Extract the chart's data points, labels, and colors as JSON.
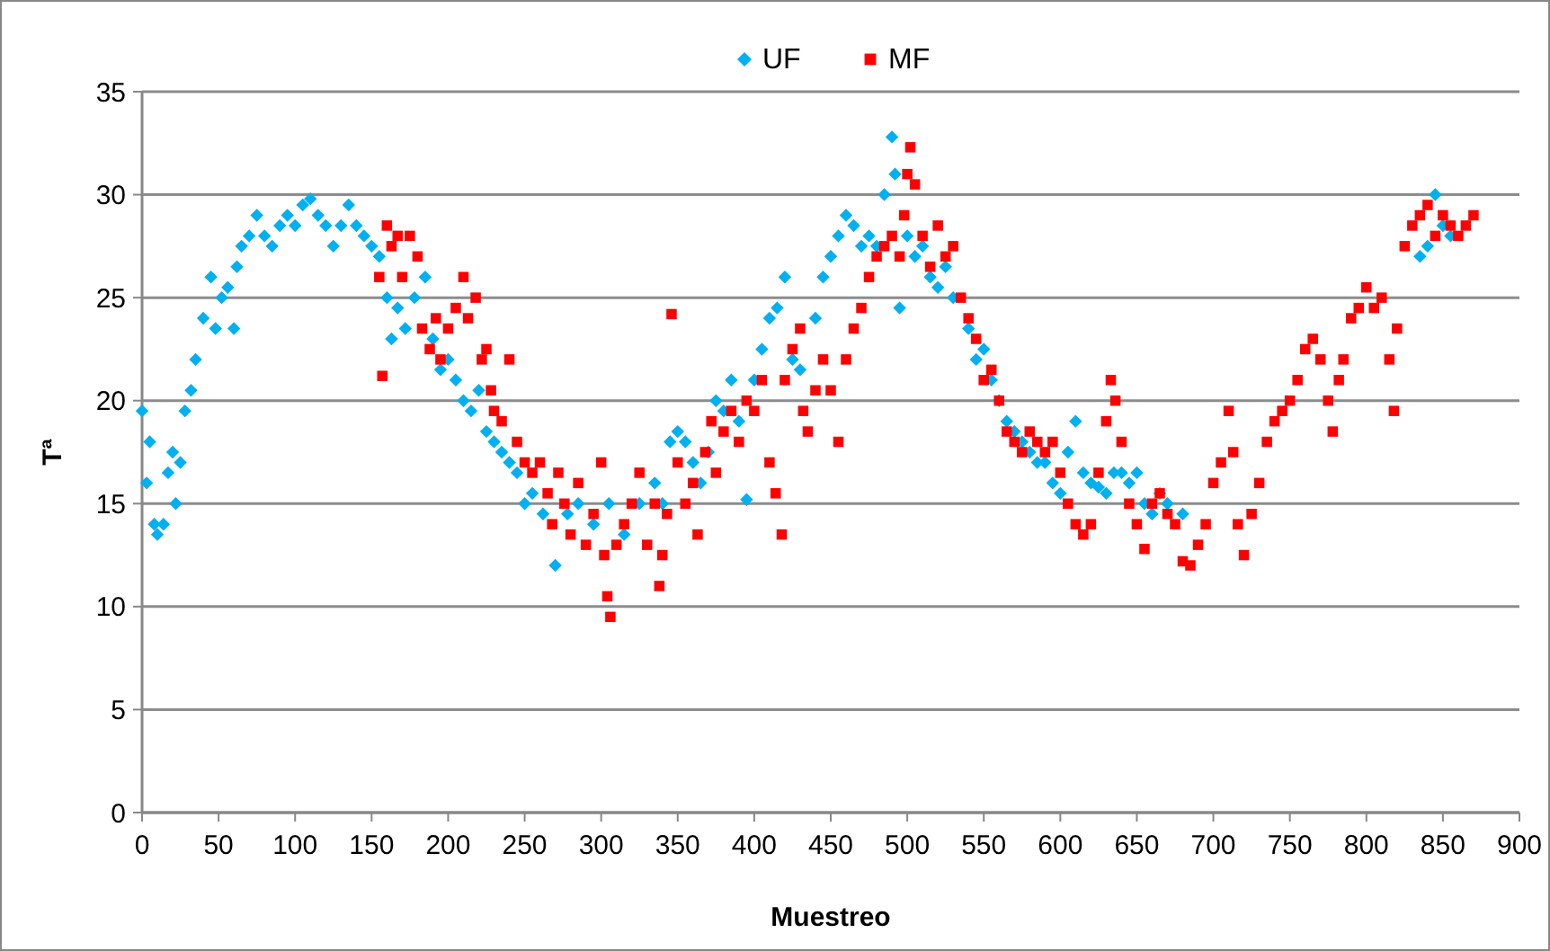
{
  "chart_data": {
    "type": "scatter",
    "xlabel": "Muestreo",
    "ylabel": "Tª",
    "xlim": [
      0,
      900
    ],
    "xticks": [
      0,
      50,
      100,
      150,
      200,
      250,
      300,
      350,
      400,
      450,
      500,
      550,
      600,
      650,
      700,
      750,
      800,
      850,
      900
    ],
    "ylim": [
      0,
      35
    ],
    "yticks": [
      0,
      5,
      10,
      15,
      20,
      25,
      30,
      35
    ],
    "grid": "y",
    "legend": "top",
    "series": [
      {
        "name": "UF",
        "color": "#00b0f0",
        "marker": "diamond",
        "x": [
          0,
          3,
          5,
          8,
          10,
          14,
          17,
          20,
          22,
          25,
          28,
          32,
          35,
          40,
          45,
          48,
          52,
          56,
          60,
          62,
          65,
          70,
          75,
          80,
          85,
          90,
          95,
          100,
          105,
          110,
          115,
          120,
          125,
          130,
          135,
          140,
          145,
          150,
          155,
          160,
          163,
          167,
          172,
          178,
          185,
          190,
          195,
          200,
          205,
          210,
          215,
          220,
          225,
          230,
          235,
          240,
          245,
          250,
          255,
          262,
          270,
          278,
          285,
          295,
          305,
          315,
          325,
          335,
          340,
          345,
          350,
          355,
          360,
          365,
          370,
          375,
          380,
          385,
          390,
          395,
          400,
          405,
          410,
          415,
          420,
          425,
          430,
          440,
          445,
          450,
          455,
          460,
          465,
          470,
          475,
          480,
          485,
          490,
          492,
          495,
          500,
          505,
          510,
          515,
          520,
          525,
          530,
          540,
          545,
          550,
          555,
          560,
          565,
          570,
          575,
          580,
          585,
          590,
          595,
          600,
          605,
          610,
          615,
          620,
          625,
          630,
          635,
          640,
          645,
          650,
          655,
          660,
          665,
          670,
          680,
          835,
          840,
          845,
          850,
          855
        ],
        "values": [
          19.5,
          16,
          18,
          14,
          13.5,
          14,
          16.5,
          17.5,
          15,
          17,
          19.5,
          20.5,
          22,
          24,
          26,
          23.5,
          25,
          25.5,
          23.5,
          26.5,
          27.5,
          28,
          29,
          28,
          27.5,
          28.5,
          29,
          28.5,
          29.5,
          29.8,
          29,
          28.5,
          27.5,
          28.5,
          29.5,
          28.5,
          28,
          27.5,
          27,
          25,
          23,
          24.5,
          23.5,
          25,
          26,
          23,
          21.5,
          22,
          21,
          20,
          19.5,
          20.5,
          18.5,
          18,
          17.5,
          17,
          16.5,
          15,
          15.5,
          14.5,
          12,
          14.5,
          15,
          14,
          15,
          13.5,
          15,
          16,
          15,
          18,
          18.5,
          18,
          17,
          16,
          17.5,
          20,
          19.5,
          21,
          19,
          15.2,
          21,
          22.5,
          24,
          24.5,
          26,
          22,
          21.5,
          24,
          26,
          27,
          28,
          29,
          28.5,
          27.5,
          28,
          27.5,
          30,
          32.8,
          31,
          24.5,
          28,
          27,
          27.5,
          26,
          25.5,
          26.5,
          25,
          23.5,
          22,
          22.5,
          21,
          20,
          19,
          18.5,
          18,
          17.5,
          17,
          17,
          16,
          15.5,
          17.5,
          19,
          16.5,
          16,
          15.8,
          15.5,
          16.5,
          16.5,
          16,
          16.5,
          15,
          14.5,
          15.5,
          15,
          14.5,
          27,
          27.5,
          30,
          28.5,
          28
        ]
      },
      {
        "name": "MF",
        "color": "#ff0000",
        "marker": "square",
        "x": [
          155,
          157,
          160,
          163,
          167,
          170,
          175,
          180,
          183,
          188,
          192,
          195,
          200,
          205,
          210,
          213,
          218,
          222,
          225,
          228,
          230,
          235,
          240,
          245,
          250,
          255,
          260,
          265,
          268,
          272,
          276,
          280,
          285,
          290,
          295,
          300,
          302,
          304,
          306,
          310,
          315,
          320,
          325,
          330,
          335,
          338,
          340,
          343,
          346,
          350,
          355,
          360,
          363,
          368,
          372,
          375,
          380,
          385,
          390,
          395,
          400,
          405,
          410,
          414,
          418,
          420,
          425,
          430,
          432,
          435,
          440,
          445,
          450,
          455,
          460,
          465,
          470,
          475,
          480,
          485,
          490,
          495,
          498,
          500,
          502,
          505,
          510,
          515,
          520,
          525,
          530,
          535,
          540,
          545,
          550,
          555,
          560,
          565,
          570,
          575,
          580,
          585,
          590,
          595,
          600,
          605,
          610,
          615,
          620,
          625,
          630,
          633,
          636,
          640,
          645,
          650,
          655,
          660,
          665,
          670,
          675,
          680,
          685,
          690,
          695,
          700,
          705,
          710,
          713,
          716,
          720,
          725,
          730,
          735,
          740,
          745,
          750,
          755,
          760,
          765,
          770,
          775,
          778,
          782,
          785,
          790,
          795,
          800,
          805,
          810,
          815,
          818,
          820,
          825,
          830,
          835,
          840,
          845,
          850,
          855,
          860,
          865,
          870
        ],
        "values": [
          26,
          21.2,
          28.5,
          27.5,
          28,
          26,
          28,
          27,
          23.5,
          22.5,
          24,
          22,
          23.5,
          24.5,
          26,
          24,
          25,
          22,
          22.5,
          20.5,
          19.5,
          19,
          22,
          18,
          17,
          16.5,
          17,
          15.5,
          14,
          16.5,
          15,
          13.5,
          16,
          13,
          14.5,
          17,
          12.5,
          10.5,
          9.5,
          13,
          14,
          15,
          16.5,
          13,
          15,
          11,
          12.5,
          14.5,
          24.2,
          17,
          15,
          16,
          13.5,
          17.5,
          19,
          16.5,
          18.5,
          19.5,
          18,
          20,
          19.5,
          21,
          17,
          15.5,
          13.5,
          21,
          22.5,
          23.5,
          19.5,
          18.5,
          20.5,
          22,
          20.5,
          18,
          22,
          23.5,
          24.5,
          26,
          27,
          27.5,
          28,
          27,
          29,
          31,
          32.3,
          30.5,
          28,
          26.5,
          28.5,
          27,
          27.5,
          25,
          24,
          23,
          21,
          21.5,
          20,
          18.5,
          18,
          17.5,
          18.5,
          18,
          17.5,
          18,
          16.5,
          15,
          14,
          13.5,
          14,
          16.5,
          19,
          21,
          20,
          18,
          15,
          14,
          12.8,
          15,
          15.5,
          14.5,
          14,
          12.2,
          12,
          13,
          14,
          16,
          17,
          19.5,
          17.5,
          14,
          12.5,
          14.5,
          16,
          18,
          19,
          19.5,
          20,
          21,
          22.5,
          23,
          22,
          20,
          18.5,
          21,
          22,
          24,
          24.5,
          25.5,
          24.5,
          25,
          22,
          19.5,
          23.5,
          27.5,
          28.5,
          29,
          29.5,
          28,
          29,
          28.5,
          28,
          28.5,
          29
        ]
      }
    ]
  }
}
